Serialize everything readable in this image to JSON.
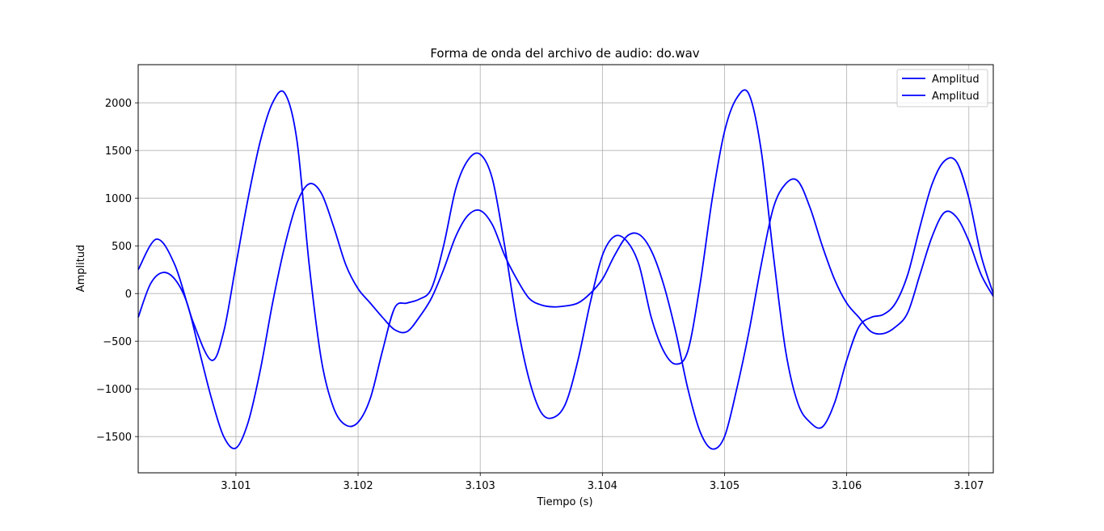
{
  "chart_data": {
    "type": "line",
    "title": "Forma de onda del archivo de audio: do.wav",
    "xlabel": "Tiempo (s)",
    "ylabel": "Amplitud",
    "xlim": [
      3.1002,
      3.1072
    ],
    "ylim": [
      -1880,
      2400
    ],
    "xticks": [
      3.101,
      3.102,
      3.103,
      3.104,
      3.105,
      3.106,
      3.107
    ],
    "xtick_labels": [
      "3.101",
      "3.102",
      "3.103",
      "3.104",
      "3.105",
      "3.106",
      "3.107"
    ],
    "yticks": [
      -1500,
      -1000,
      -500,
      0,
      500,
      1000,
      1500,
      2000
    ],
    "ytick_labels": [
      "−1500",
      "−1000",
      "−500",
      "0",
      "500",
      "1000",
      "1500",
      "2000"
    ],
    "grid": true,
    "legend_position": "top-right",
    "series": [
      {
        "name": "Amplitud",
        "color": "#0000ff",
        "x": [
          3.1002,
          3.10035,
          3.1005,
          3.10065,
          3.1008,
          3.1009,
          3.101,
          3.1011,
          3.1012,
          3.1013,
          3.1014,
          3.1015,
          3.1016,
          3.1017,
          3.1018,
          3.1019,
          3.102,
          3.1021,
          3.1022,
          3.1023,
          3.1024,
          3.1025,
          3.1026,
          3.1027,
          3.1028,
          3.1029,
          3.103,
          3.1031,
          3.1032,
          3.1033,
          3.1034,
          3.1035,
          3.1036,
          3.1037,
          3.1038,
          3.1039,
          3.104,
          3.1041,
          3.1042,
          3.1043,
          3.1044,
          3.1045,
          3.1046,
          3.1047,
          3.1048,
          3.1049,
          3.105,
          3.1051,
          3.1052,
          3.1053,
          3.1054,
          3.1055,
          3.1056,
          3.1057,
          3.1058,
          3.1059,
          3.106,
          3.1061,
          3.1062,
          3.1063,
          3.1064,
          3.1065,
          3.1066,
          3.1067,
          3.1068,
          3.1069,
          3.107,
          3.1071,
          3.1072
        ],
        "y": [
          250,
          570,
          300,
          -300,
          -700,
          -400,
          300,
          1000,
          1600,
          2000,
          2100,
          1600,
          300,
          -700,
          -1200,
          -1380,
          -1350,
          -1100,
          -600,
          -150,
          -100,
          -60,
          50,
          500,
          1100,
          1400,
          1460,
          1200,
          500,
          -300,
          -900,
          -1250,
          -1300,
          -1150,
          -700,
          -100,
          400,
          600,
          550,
          300,
          -250,
          -600,
          -740,
          -600,
          100,
          1000,
          1700,
          2050,
          2090,
          1500,
          400,
          -600,
          -1150,
          -1350,
          -1400,
          -1150,
          -700,
          -350,
          -250,
          -220,
          -100,
          200,
          700,
          1150,
          1390,
          1380,
          1000,
          400,
          0
        ]
      },
      {
        "name": "Amplitud",
        "color": "#0000ff",
        "x": [
          3.1002,
          3.1003,
          3.1004,
          3.1005,
          3.1006,
          3.1007,
          3.1008,
          3.1009,
          3.101,
          3.1011,
          3.1012,
          3.1013,
          3.1014,
          3.1015,
          3.1016,
          3.1017,
          3.1018,
          3.1019,
          3.102,
          3.1021,
          3.1022,
          3.1023,
          3.1024,
          3.1025,
          3.1026,
          3.1027,
          3.1028,
          3.1029,
          3.103,
          3.1031,
          3.1032,
          3.1033,
          3.1034,
          3.1035,
          3.1036,
          3.1037,
          3.1038,
          3.1039,
          3.104,
          3.1041,
          3.1042,
          3.1043,
          3.1044,
          3.1045,
          3.1046,
          3.1047,
          3.1048,
          3.1049,
          3.105,
          3.1051,
          3.1052,
          3.1053,
          3.1054,
          3.1055,
          3.1056,
          3.1057,
          3.1058,
          3.1059,
          3.106,
          3.1061,
          3.1062,
          3.1063,
          3.1064,
          3.1065,
          3.1066,
          3.1067,
          3.1068,
          3.1069,
          3.107,
          3.1071,
          3.1072
        ],
        "y": [
          -250,
          100,
          220,
          150,
          -100,
          -600,
          -1100,
          -1500,
          -1620,
          -1350,
          -800,
          -100,
          500,
          950,
          1150,
          1050,
          700,
          300,
          50,
          -100,
          -250,
          -380,
          -400,
          -250,
          -50,
          250,
          600,
          820,
          870,
          720,
          400,
          150,
          -50,
          -120,
          -140,
          -130,
          -100,
          0,
          150,
          400,
          600,
          620,
          450,
          100,
          -400,
          -1000,
          -1450,
          -1630,
          -1500,
          -1000,
          -400,
          300,
          900,
          1150,
          1180,
          900,
          500,
          150,
          -100,
          -250,
          -400,
          -420,
          -350,
          -200,
          200,
          600,
          850,
          800,
          550,
          200,
          -30
        ]
      }
    ]
  }
}
